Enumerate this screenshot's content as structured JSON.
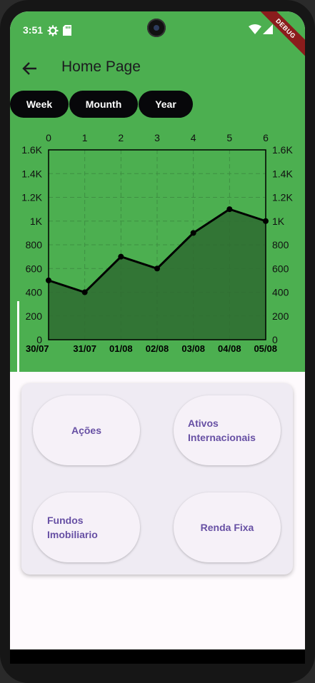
{
  "status_bar": {
    "time": "3:51",
    "debug_banner": "DEBUG"
  },
  "app_bar": {
    "title": "Home Page"
  },
  "filters": [
    "Week",
    "Mounth",
    "Year"
  ],
  "chart_data": {
    "type": "area",
    "top_x_ticks": [
      "0",
      "1",
      "2",
      "3",
      "4",
      "5",
      "6"
    ],
    "categories": [
      "30/07",
      "31/07",
      "01/08",
      "02/08",
      "03/08",
      "04/08",
      "05/08"
    ],
    "values": [
      500,
      400,
      700,
      600,
      900,
      1100,
      1000
    ],
    "y_ticks": [
      "0",
      "200",
      "400",
      "600",
      "800",
      "1K",
      "1.2K",
      "1.4K",
      "1.6K"
    ],
    "ylim": [
      0,
      1600
    ],
    "grid": true,
    "colors": {
      "line": "#000000",
      "fill": "#2e6b30",
      "background": "#4caf50"
    }
  },
  "investments": {
    "buttons": [
      {
        "label": "Ações"
      },
      {
        "label": "Ativos Internacionais"
      },
      {
        "label": "Fundos Imobiliario"
      },
      {
        "label": "Renda Fixa"
      }
    ]
  }
}
